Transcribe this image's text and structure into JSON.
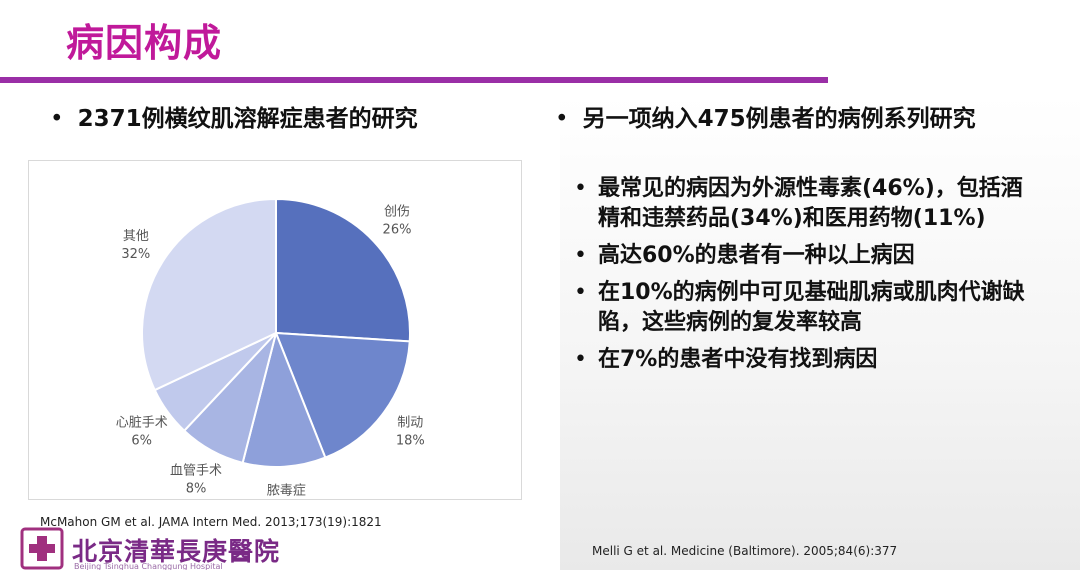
{
  "slide": {
    "title": "病因构成"
  },
  "left": {
    "subhead": "2371例横纹肌溶解症患者的研究",
    "citation": "McMahon GM et al. JAMA Intern Med. 2013;173(19):1821"
  },
  "right": {
    "subhead": "另一项纳入475例患者的病例系列研究",
    "bullets": [
      "最常见的病因为外源性毒素(46%)，包括酒精和违禁药品(34%)和医用药物(11%)",
      "高达60%的患者有一种以上病因",
      "在10%的病例中可见基础肌病或肌肉代谢缺陷，这些病例的复发率较高",
      "在7%的患者中没有找到病因"
    ],
    "citation": "Melli G et al. Medicine (Baltimore). 2005;84(6):377"
  },
  "footer": {
    "hospital_name": "北京清華長庚醫院",
    "hospital_english": "Beijing Tsinghua Changgung Hospital"
  },
  "colors": {
    "title": "#c0199a",
    "rule": "#9a2fa6",
    "logo": "#a0307f"
  },
  "chart_data": {
    "type": "pie",
    "slices": [
      {
        "name": "创伤",
        "value": 26,
        "label": "26%",
        "color": "#5670bd"
      },
      {
        "name": "制动",
        "value": 18,
        "label": "18%",
        "color": "#6e86cc"
      },
      {
        "name": "脓毒症",
        "value": 10,
        "label": "10%",
        "color": "#8ea0da"
      },
      {
        "name": "血管手术",
        "value": 8,
        "label": "8%",
        "color": "#a8b5e3"
      },
      {
        "name": "心脏手术",
        "value": 6,
        "label": "6%",
        "color": "#c0c9ec"
      },
      {
        "name": "其他",
        "value": 32,
        "label": "32%",
        "color": "#d3d9f2"
      }
    ],
    "start_angle_deg": 0,
    "direction": "clockwise",
    "labels_outside": true
  }
}
